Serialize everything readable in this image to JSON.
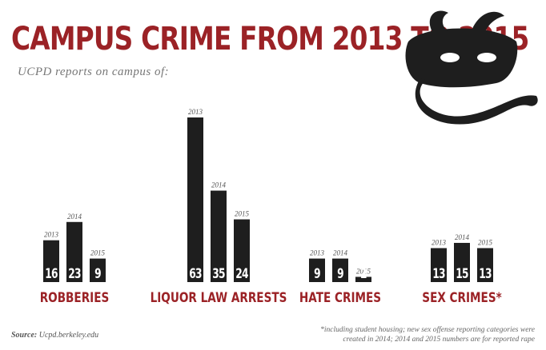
{
  "header": {
    "title": "CAMPUS CRIME FROM 2013 TO 2015",
    "subtitle": "UCPD reports on campus of:"
  },
  "colors": {
    "title": "#9b2226",
    "bar": "#1e1e1e",
    "category_label": "#9b2226",
    "mascot": "#1e1e1e"
  },
  "mascot": {
    "icon": "bear-mask-snake-icon"
  },
  "chart_data": {
    "type": "bar",
    "title": "CAMPUS CRIME FROM 2013 TO 2015",
    "subtitle": "UCPD reports on campus of:",
    "categories": [
      "ROBBERIES",
      "LIQUOR LAW ARRESTS",
      "HATE CRIMES",
      "SEX CRIMES*"
    ],
    "series": [
      {
        "name": "2013",
        "values": [
          16,
          63,
          9,
          13
        ]
      },
      {
        "name": "2014",
        "values": [
          23,
          35,
          9,
          15
        ]
      },
      {
        "name": "2015",
        "values": [
          9,
          24,
          2,
          13
        ]
      }
    ],
    "data_labels": true,
    "grid": false,
    "legend": "none"
  },
  "footer": {
    "source_label": "Source:",
    "source_text": "Ucpd.berkeley.edu",
    "footnote": "*including student housing; new sex offense reporting categories were created in 2014; 2014 and 2015 numbers are for reported rape"
  }
}
